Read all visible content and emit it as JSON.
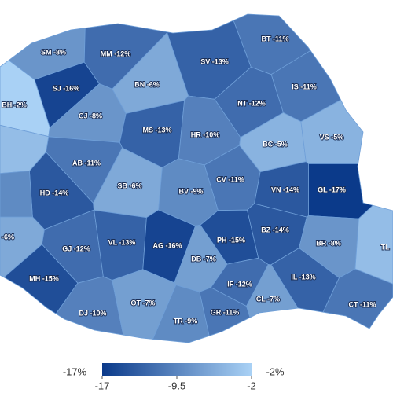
{
  "chart_data": {
    "type": "choropleth",
    "regions": [
      {
        "label": "SM -8%",
        "value": -8
      },
      {
        "label": "MM -12%",
        "value": -12
      },
      {
        "label": "BT -11%",
        "value": -11
      },
      {
        "label": "SV -13%",
        "value": -13
      },
      {
        "label": "SJ -16%",
        "value": -16
      },
      {
        "label": "BN -6%",
        "value": -6
      },
      {
        "label": "IS -11%",
        "value": -11
      },
      {
        "label": "BH -2%",
        "value": -2
      },
      {
        "label": "CJ -8%",
        "value": -8
      },
      {
        "label": "NT -12%",
        "value": -12
      },
      {
        "label": "MS -13%",
        "value": -13
      },
      {
        "label": "HR -10%",
        "value": -10
      },
      {
        "label": "BC -5%",
        "value": -5
      },
      {
        "label": "VS -5%",
        "value": -5
      },
      {
        "label": "AB -11%",
        "value": -11
      },
      {
        "label": "CV -11%",
        "value": -11
      },
      {
        "label": "SB -6%",
        "value": -6
      },
      {
        "label": "BV -9%",
        "value": -9
      },
      {
        "label": "VN -14%",
        "value": -14
      },
      {
        "label": "GL -17%",
        "value": -17
      },
      {
        "label": "HD -14%",
        "value": -14
      },
      {
        "label": "-6%",
        "value": -6
      },
      {
        "label": "GJ -12%",
        "value": -12
      },
      {
        "label": "VL -13%",
        "value": -13
      },
      {
        "label": "AG -16%",
        "value": -16
      },
      {
        "label": "PH -15%",
        "value": -15
      },
      {
        "label": "BZ -14%",
        "value": -14
      },
      {
        "label": "BR -8%",
        "value": -8
      },
      {
        "label": "TL",
        "value": -4
      },
      {
        "label": "MH -15%",
        "value": -15
      },
      {
        "label": "DB -7%",
        "value": -7
      },
      {
        "label": "IF -12%",
        "value": -12
      },
      {
        "label": "IL -13%",
        "value": -13
      },
      {
        "label": "DJ -10%",
        "value": -10
      },
      {
        "label": "OT -7%",
        "value": -7
      },
      {
        "label": "CL -7%",
        "value": -7
      },
      {
        "label": "CT -11%",
        "value": -11
      },
      {
        "label": "TR -9%",
        "value": -9
      },
      {
        "label": "GR -11%",
        "value": -11
      },
      {
        "label": null,
        "value": -4
      },
      {
        "label": null,
        "value": -9
      }
    ],
    "legend_min_label": "-17%",
    "legend_max_label": "-2%",
    "colorlim": [
      -17,
      -2
    ],
    "colorticks": [
      -17,
      -9.5,
      -2
    ],
    "colors": [
      "#0b3a8a",
      "#a9d1f5"
    ]
  }
}
